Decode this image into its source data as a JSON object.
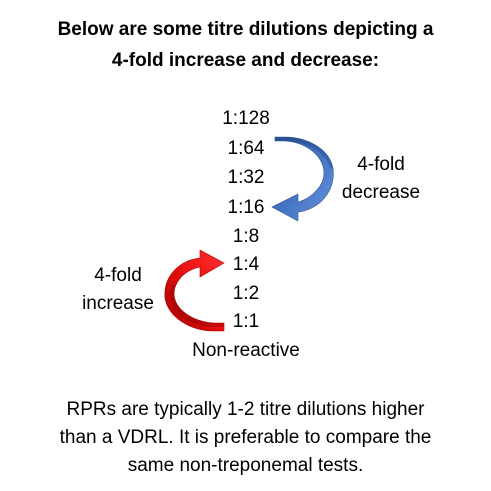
{
  "title": {
    "line1": "Below are some titre dilutions depicting a",
    "line2": "4-fold increase and decrease:"
  },
  "dilutions": [
    "1:128",
    "1:64",
    "1:32",
    "1:16",
    "1:8",
    "1:4",
    "1:2",
    "1:1"
  ],
  "non_reactive_label": "Non-reactive",
  "decrease_label": {
    "line1": "4-fold",
    "line2": "decrease"
  },
  "increase_label": {
    "line1": "4-fold",
    "line2": "increase"
  },
  "note": {
    "line1": "RPRs are typically 1-2 titre dilutions higher",
    "line2": "than a VDRL. It is preferable to compare the",
    "line3": "same non-treponemal tests."
  },
  "colors": {
    "decrease_arrow": "#4472C4",
    "increase_arrow": "#E81010",
    "text": "#000000"
  },
  "icons": {
    "decrease_arrow": "curved-arrow-down-icon",
    "increase_arrow": "curved-arrow-up-icon"
  }
}
